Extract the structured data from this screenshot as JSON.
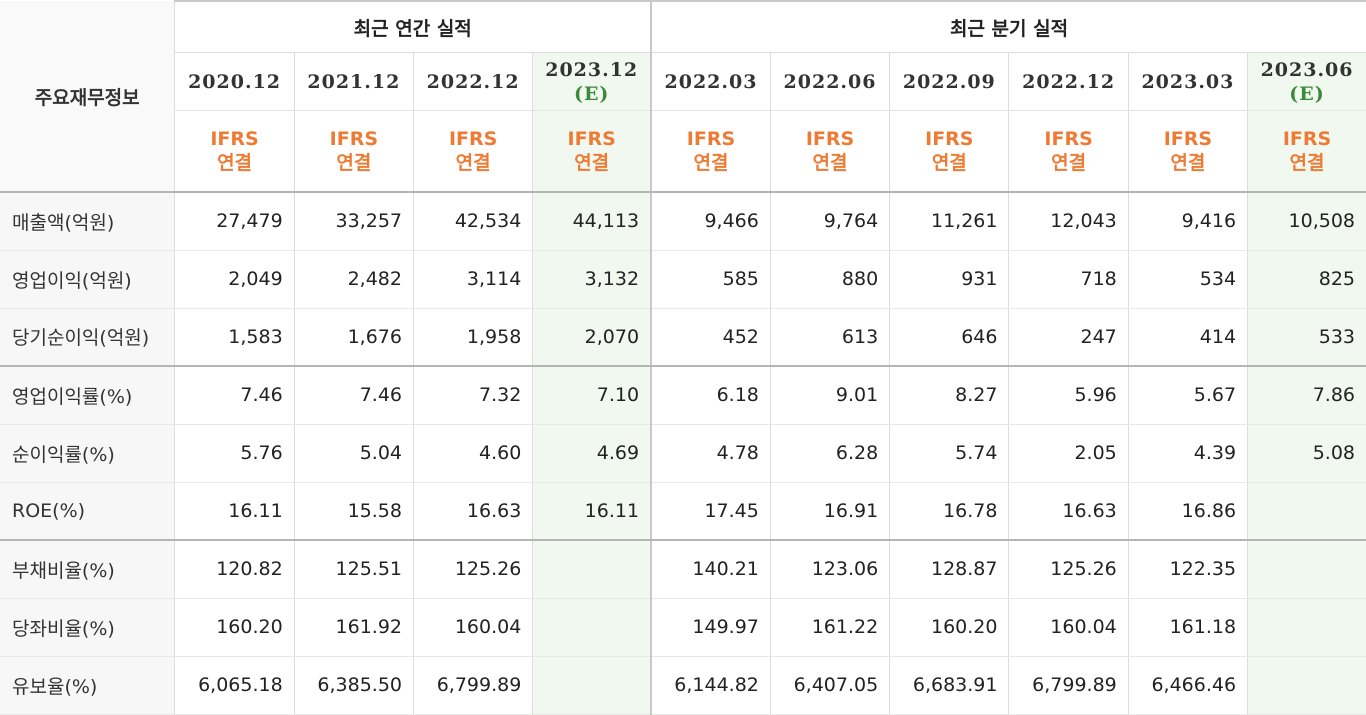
{
  "header": {
    "row_label": "주요재무정보",
    "annual_group": "최근 연간 실적",
    "quarter_group": "최근 분기 실적",
    "periods": [
      {
        "date": "2020.12",
        "est": ""
      },
      {
        "date": "2021.12",
        "est": ""
      },
      {
        "date": "2022.12",
        "est": ""
      },
      {
        "date": "2023.12",
        "est": "(E)"
      },
      {
        "date": "2022.03",
        "est": ""
      },
      {
        "date": "2022.06",
        "est": ""
      },
      {
        "date": "2022.09",
        "est": ""
      },
      {
        "date": "2022.12",
        "est": ""
      },
      {
        "date": "2023.03",
        "est": ""
      },
      {
        "date": "2023.06",
        "est": "(E)"
      }
    ],
    "ifrs_line1": "IFRS",
    "ifrs_line2": "연결"
  },
  "rows": [
    {
      "label": "매출액(억원)",
      "values": [
        "27,479",
        "33,257",
        "42,534",
        "44,113",
        "9,466",
        "9,764",
        "11,261",
        "12,043",
        "9,416",
        "10,508"
      ]
    },
    {
      "label": "영업이익(억원)",
      "values": [
        "2,049",
        "2,482",
        "3,114",
        "3,132",
        "585",
        "880",
        "931",
        "718",
        "534",
        "825"
      ]
    },
    {
      "label": "당기순이익(억원)",
      "values": [
        "1,583",
        "1,676",
        "1,958",
        "2,070",
        "452",
        "613",
        "646",
        "247",
        "414",
        "533"
      ]
    },
    {
      "label": "영업이익률(%)",
      "values": [
        "7.46",
        "7.46",
        "7.32",
        "7.10",
        "6.18",
        "9.01",
        "8.27",
        "5.96",
        "5.67",
        "7.86"
      ]
    },
    {
      "label": "순이익률(%)",
      "values": [
        "5.76",
        "5.04",
        "4.60",
        "4.69",
        "4.78",
        "6.28",
        "5.74",
        "2.05",
        "4.39",
        "5.08"
      ]
    },
    {
      "label": "ROE(%)",
      "values": [
        "16.11",
        "15.58",
        "16.63",
        "16.11",
        "17.45",
        "16.91",
        "16.78",
        "16.63",
        "16.86",
        ""
      ]
    },
    {
      "label": "부채비율(%)",
      "values": [
        "120.82",
        "125.51",
        "125.26",
        "",
        "140.21",
        "123.06",
        "128.87",
        "125.26",
        "122.35",
        ""
      ]
    },
    {
      "label": "당좌비율(%)",
      "values": [
        "160.20",
        "161.92",
        "160.04",
        "",
        "149.97",
        "161.22",
        "160.20",
        "160.04",
        "161.18",
        ""
      ]
    },
    {
      "label": "유보율(%)",
      "values": [
        "6,065.18",
        "6,385.50",
        "6,799.89",
        "",
        "6,144.82",
        "6,407.05",
        "6,683.91",
        "6,799.89",
        "6,466.46",
        ""
      ]
    }
  ],
  "colors": {
    "estimate_bg": "#f1f8ef",
    "ifrs_orange": "#ee7b34",
    "estimate_green": "#3a8a3a"
  }
}
